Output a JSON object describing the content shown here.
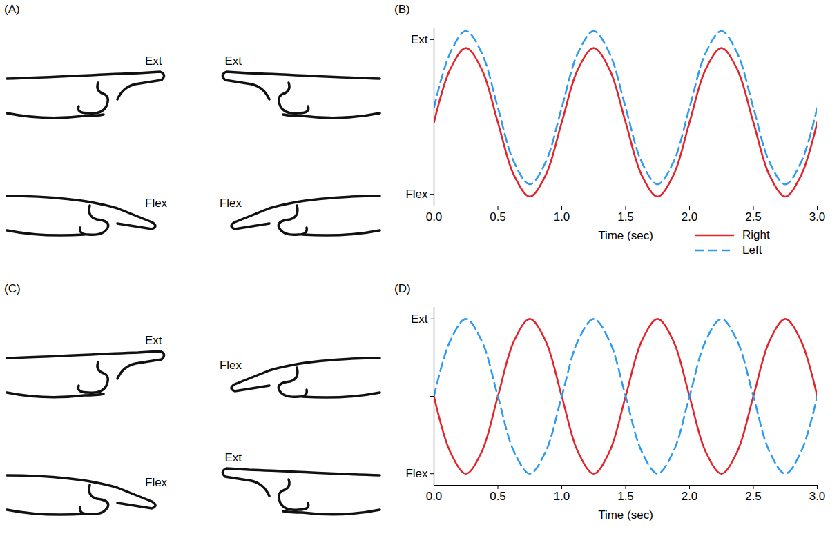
{
  "chart_data": [
    {
      "type": "line",
      "title": "(B)",
      "x": [
        0,
        0.125,
        0.25,
        0.375,
        0.5,
        0.625,
        0.75,
        0.875,
        1,
        1.125,
        1.25,
        1.375,
        1.5,
        1.625,
        1.75,
        1.875,
        2,
        2.125,
        2.25,
        2.375,
        2.5,
        2.625,
        2.75,
        2.875,
        3
      ],
      "xlim": [
        0,
        3
      ],
      "xticks": [
        {
          "value": 0,
          "label": "0.0"
        },
        0.5,
        {
          "value": 1,
          "label": "1.0"
        },
        1.5,
        {
          "value": 2,
          "label": "2.0"
        },
        2.5,
        {
          "value": 3,
          "label": "3.0"
        }
      ],
      "xlabel": "Time (sec)",
      "ylim": [
        -1.15,
        1.15
      ],
      "yticks": [
        {
          "value": -1,
          "label": "Flex"
        },
        {
          "value": 0,
          "label": null
        },
        {
          "value": 1,
          "label": "Ext"
        }
      ],
      "legend": "bottom",
      "series": [
        {
          "name": "Right",
          "color": "#e3242b",
          "line_style": "solid",
          "values": [
            -0.07,
            0.61,
            0.89,
            0.61,
            -0.07,
            -0.75,
            -1.03,
            -0.75,
            -0.07,
            0.61,
            0.89,
            0.61,
            -0.07,
            -0.75,
            -1.03,
            -0.75,
            -0.07,
            0.61,
            0.89,
            0.61,
            -0.07,
            -0.75,
            -1.03,
            -0.75,
            -0.07
          ]
        },
        {
          "name": "Left",
          "color": "#2e9bef",
          "line_style": "dashed",
          "values": [
            0.12,
            0.82,
            1.11,
            0.82,
            0.12,
            -0.58,
            -0.87,
            -0.58,
            0.12,
            0.82,
            1.11,
            0.82,
            0.12,
            -0.58,
            -0.87,
            -0.58,
            0.12,
            0.82,
            1.11,
            0.82,
            0.12,
            -0.58,
            -0.87,
            -0.58,
            0.12
          ]
        }
      ]
    },
    {
      "type": "line",
      "title": "(D)",
      "x": [
        0,
        0.125,
        0.25,
        0.375,
        0.5,
        0.625,
        0.75,
        0.875,
        1,
        1.125,
        1.25,
        1.375,
        1.5,
        1.625,
        1.75,
        1.875,
        2,
        2.125,
        2.25,
        2.375,
        2.5,
        2.625,
        2.75,
        2.875,
        3
      ],
      "xlim": [
        0,
        3
      ],
      "xticks": [
        {
          "value": 0,
          "label": "0.0"
        },
        0.5,
        {
          "value": 1,
          "label": "1.0"
        },
        1.5,
        {
          "value": 2,
          "label": "2.0"
        },
        2.5,
        {
          "value": 3,
          "label": "3.0"
        }
      ],
      "xlabel": "Time (sec)",
      "ylim": [
        -1.15,
        1.15
      ],
      "yticks": [
        {
          "value": -1,
          "label": "Flex"
        },
        {
          "value": 0,
          "label": null
        },
        {
          "value": 1,
          "label": "Ext"
        }
      ],
      "series": [
        {
          "color": "#e3242b",
          "line_style": "solid",
          "values": [
            0,
            -0.71,
            -1,
            -0.71,
            0,
            0.71,
            1,
            0.71,
            0,
            -0.71,
            -1,
            -0.71,
            0,
            0.71,
            1,
            0.71,
            0,
            -0.71,
            -1,
            -0.71,
            0,
            0.71,
            1,
            0.71,
            0
          ]
        },
        {
          "color": "#2e9bef",
          "line_style": "dashed",
          "values": [
            0,
            0.71,
            1,
            0.71,
            0,
            -0.71,
            -1,
            -0.71,
            0,
            0.71,
            1,
            0.71,
            0,
            -0.71,
            -1,
            -0.71,
            0,
            0.71,
            1,
            0.71,
            0,
            -0.71,
            -1,
            -0.71,
            0
          ]
        }
      ]
    }
  ],
  "diagrams": [
    {
      "panel": "(A)",
      "labels": [
        [
          "Ext",
          "Ext"
        ],
        [
          "Flex",
          "Flex"
        ]
      ]
    },
    {
      "panel": "(C)",
      "labels": [
        [
          "Ext",
          "Flex"
        ],
        [
          "Flex",
          "Ext"
        ]
      ]
    }
  ]
}
